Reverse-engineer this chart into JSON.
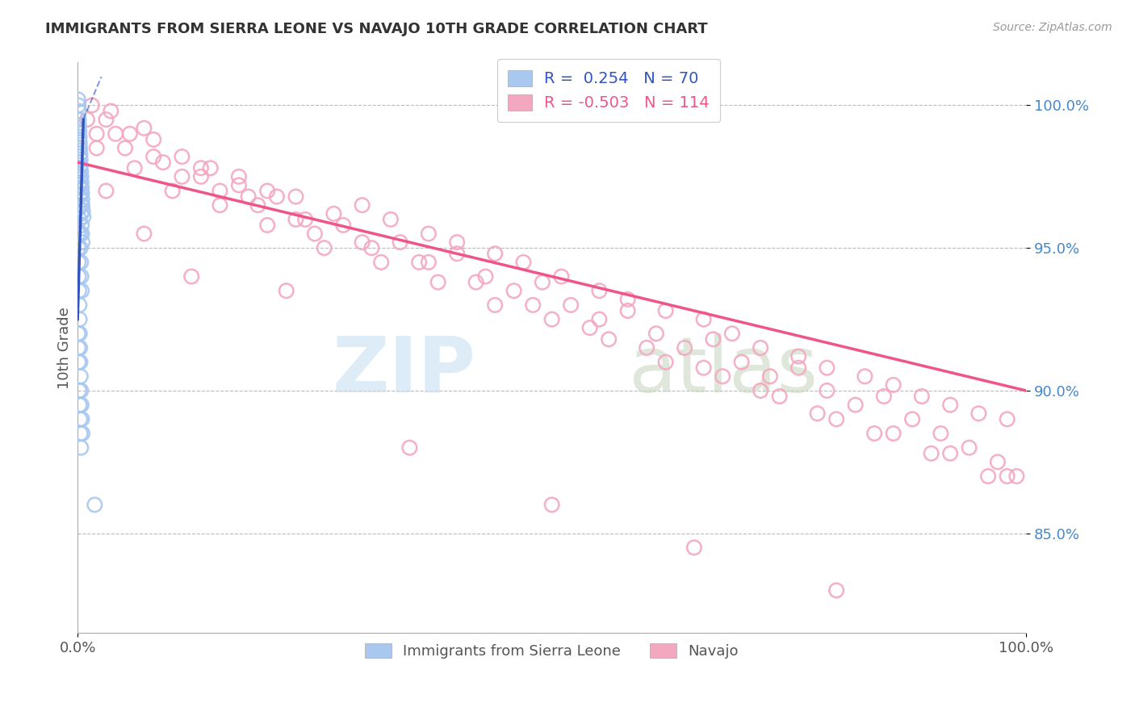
{
  "title": "IMMIGRANTS FROM SIERRA LEONE VS NAVAJO 10TH GRADE CORRELATION CHART",
  "source_text": "Source: ZipAtlas.com",
  "ylabel": "10th Grade",
  "xlim": [
    0.0,
    100.0
  ],
  "ylim": [
    81.5,
    101.5
  ],
  "x_tick_labels": [
    "0.0%",
    "100.0%"
  ],
  "y_tick_labels": [
    "85.0%",
    "90.0%",
    "95.0%",
    "100.0%"
  ],
  "y_tick_values": [
    85.0,
    90.0,
    95.0,
    100.0
  ],
  "legend_r_blue": "0.254",
  "legend_n_blue": "70",
  "legend_r_pink": "-0.503",
  "legend_n_pink": "114",
  "blue_color": "#A8C8F0",
  "pink_color": "#F4A8C0",
  "trend_blue": "#3355BB",
  "trend_pink": "#EE5588",
  "blue_scatter_x": [
    0.05,
    0.08,
    0.1,
    0.12,
    0.15,
    0.18,
    0.2,
    0.22,
    0.25,
    0.28,
    0.3,
    0.32,
    0.35,
    0.38,
    0.4,
    0.42,
    0.45,
    0.48,
    0.5,
    0.55,
    0.6,
    0.05,
    0.08,
    0.12,
    0.15,
    0.18,
    0.22,
    0.25,
    0.28,
    0.3,
    0.35,
    0.38,
    0.42,
    0.45,
    0.5,
    0.05,
    0.08,
    0.1,
    0.15,
    0.18,
    0.2,
    0.25,
    0.3,
    0.35,
    0.38,
    0.42,
    0.05,
    0.08,
    0.1,
    0.12,
    0.15,
    0.18,
    0.2,
    0.22,
    0.25,
    0.28,
    0.3,
    0.35,
    0.4,
    0.45,
    0.5,
    0.05,
    0.08,
    0.1,
    0.15,
    0.2,
    0.25,
    0.3,
    0.35,
    1.8
  ],
  "blue_scatter_y": [
    100.2,
    100.0,
    99.8,
    99.5,
    99.3,
    99.1,
    98.9,
    98.7,
    98.5,
    98.3,
    98.1,
    97.9,
    97.7,
    97.5,
    97.3,
    97.1,
    96.9,
    96.7,
    96.5,
    96.3,
    96.1,
    99.5,
    99.2,
    98.8,
    98.5,
    98.2,
    97.8,
    97.5,
    97.2,
    96.9,
    96.5,
    96.2,
    95.8,
    95.5,
    95.2,
    98.0,
    97.6,
    97.2,
    96.8,
    96.4,
    96.0,
    95.5,
    95.0,
    94.5,
    94.0,
    93.5,
    95.5,
    95.0,
    94.5,
    94.0,
    93.5,
    93.0,
    92.5,
    92.0,
    91.5,
    91.0,
    90.5,
    90.0,
    89.5,
    89.0,
    88.5,
    92.0,
    91.5,
    91.0,
    90.0,
    89.5,
    89.0,
    88.5,
    88.0,
    86.0
  ],
  "pink_scatter_x": [
    1.0,
    2.0,
    3.5,
    5.0,
    7.0,
    9.0,
    11.0,
    13.0,
    15.0,
    17.0,
    19.0,
    21.0,
    23.0,
    25.0,
    28.0,
    31.0,
    34.0,
    37.0,
    40.0,
    43.0,
    46.0,
    49.0,
    52.0,
    55.0,
    58.0,
    61.0,
    64.0,
    67.0,
    70.0,
    73.0,
    76.0,
    79.0,
    82.0,
    85.0,
    88.0,
    91.0,
    94.0,
    97.0,
    99.0,
    1.5,
    3.0,
    5.5,
    8.0,
    11.0,
    14.0,
    17.0,
    20.0,
    23.0,
    27.0,
    30.0,
    33.0,
    37.0,
    40.0,
    44.0,
    47.0,
    51.0,
    55.0,
    58.0,
    62.0,
    66.0,
    69.0,
    72.0,
    76.0,
    79.0,
    83.0,
    86.0,
    89.0,
    92.0,
    95.0,
    98.0,
    2.0,
    6.0,
    10.0,
    15.0,
    20.0,
    26.0,
    32.0,
    38.0,
    44.0,
    50.0,
    56.0,
    62.0,
    68.0,
    74.0,
    80.0,
    86.0,
    92.0,
    98.0,
    4.0,
    8.0,
    13.0,
    18.0,
    24.0,
    30.0,
    36.0,
    42.0,
    48.0,
    54.0,
    60.0,
    66.0,
    72.0,
    78.0,
    84.0,
    90.0,
    96.0,
    3.0,
    7.0,
    12.0,
    22.0,
    35.0,
    50.0,
    65.0,
    80.0
  ],
  "pink_scatter_y": [
    99.5,
    99.0,
    99.8,
    98.5,
    99.2,
    98.0,
    97.5,
    97.8,
    97.0,
    97.2,
    96.5,
    96.8,
    96.0,
    95.5,
    95.8,
    95.0,
    95.2,
    94.5,
    94.8,
    94.0,
    93.5,
    93.8,
    93.0,
    92.5,
    92.8,
    92.0,
    91.5,
    91.8,
    91.0,
    90.5,
    90.8,
    90.0,
    89.5,
    89.8,
    89.0,
    88.5,
    88.0,
    87.5,
    87.0,
    100.0,
    99.5,
    99.0,
    98.8,
    98.2,
    97.8,
    97.5,
    97.0,
    96.8,
    96.2,
    96.5,
    96.0,
    95.5,
    95.2,
    94.8,
    94.5,
    94.0,
    93.5,
    93.2,
    92.8,
    92.5,
    92.0,
    91.5,
    91.2,
    90.8,
    90.5,
    90.2,
    89.8,
    89.5,
    89.2,
    89.0,
    98.5,
    97.8,
    97.0,
    96.5,
    95.8,
    95.0,
    94.5,
    93.8,
    93.0,
    92.5,
    91.8,
    91.0,
    90.5,
    89.8,
    89.0,
    88.5,
    87.8,
    87.0,
    99.0,
    98.2,
    97.5,
    96.8,
    96.0,
    95.2,
    94.5,
    93.8,
    93.0,
    92.2,
    91.5,
    90.8,
    90.0,
    89.2,
    88.5,
    87.8,
    87.0,
    97.0,
    95.5,
    94.0,
    93.5,
    88.0,
    86.0,
    84.5,
    83.0
  ],
  "blue_trend_x": [
    0.0,
    2.0
  ],
  "blue_trend_y_start": 92.5,
  "blue_trend_y_end": 99.5,
  "pink_trend_x": [
    0.0,
    100.0
  ],
  "pink_trend_y_start": 98.0,
  "pink_trend_y_end": 90.0
}
